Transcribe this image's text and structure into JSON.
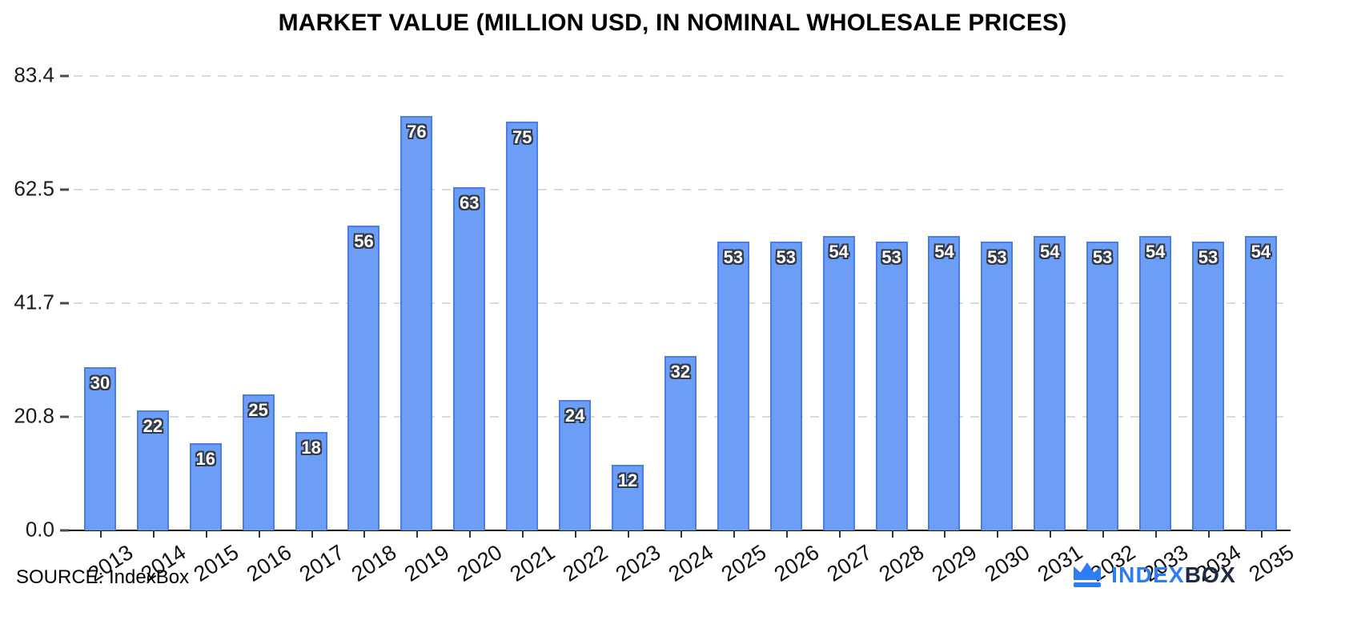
{
  "title": "MARKET VALUE (MILLION USD, IN NOMINAL WHOLESALE PRICES)",
  "source": "SOURCE: IndexBox",
  "logo": {
    "index": "INDEX",
    "box": "BOX",
    "icon": "crown-icon"
  },
  "colors": {
    "bar_fill": "#6D9EF7",
    "bar_border": "#4a7de5",
    "value_label_text": "#ffffff",
    "value_label_outline": "#333a45",
    "grid": "#dadada",
    "axis": "#111111",
    "logo_blue": "#2e7cf6",
    "logo_dark": "#1f2a44"
  },
  "chart_data": {
    "type": "bar",
    "title": "MARKET VALUE (MILLION USD, IN NOMINAL WHOLESALE PRICES)",
    "categories": [
      "2013",
      "2014",
      "2015",
      "2016",
      "2017",
      "2018",
      "2019",
      "2020",
      "2021",
      "2022",
      "2023",
      "2024",
      "2025",
      "2026",
      "2027",
      "2028",
      "2029",
      "2030",
      "2031",
      "2032",
      "2033",
      "2034",
      "2035"
    ],
    "values": [
      30,
      22,
      16,
      25,
      18,
      56,
      76,
      63,
      75,
      24,
      12,
      32,
      53,
      53,
      54,
      53,
      54,
      53,
      54,
      53,
      54,
      53,
      54
    ],
    "xlabel": "",
    "ylabel": "",
    "ylim": [
      0,
      83.4
    ],
    "yticks": [
      0,
      20.8,
      41.7,
      62.5,
      83.4
    ],
    "ytick_labels": [
      "0.0",
      "20.8",
      "41.7",
      "62.5",
      "83.4"
    ],
    "grid": "dashed horizontal",
    "legend": "none",
    "bar_labels_inside_top": true,
    "xtick_rotation_deg": -33
  }
}
